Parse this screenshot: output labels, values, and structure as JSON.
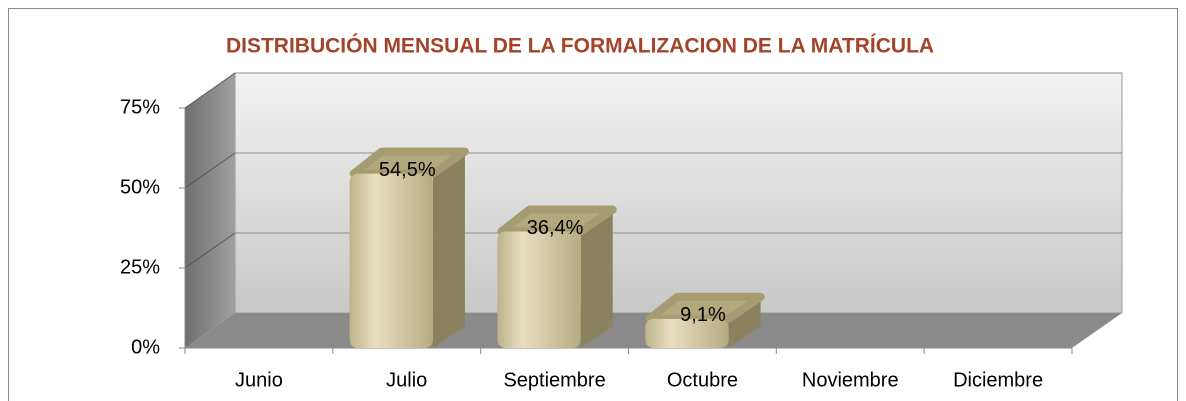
{
  "chart_data": {
    "type": "bar3d",
    "title": "DISTRIBUCIÓN MENSUAL DE LA FORMALIZACION DE LA MATRÍCULA",
    "categories": [
      "Junio",
      "Julio",
      "Septiembre",
      "Octubre",
      "Noviembre",
      "Diciembre"
    ],
    "values": [
      0,
      54.5,
      36.4,
      9.1,
      0,
      0
    ],
    "value_labels": [
      null,
      "54,5%",
      "36,4%",
      "9,1%",
      null,
      null
    ],
    "color": "#d3c9a0",
    "ylim": [
      0,
      75
    ],
    "yticks": [
      {
        "value": 0,
        "label": "0%"
      },
      {
        "value": 25,
        "label": "25%"
      },
      {
        "value": 50,
        "label": "50%"
      },
      {
        "value": 75,
        "label": "75%"
      }
    ],
    "grid": true
  }
}
